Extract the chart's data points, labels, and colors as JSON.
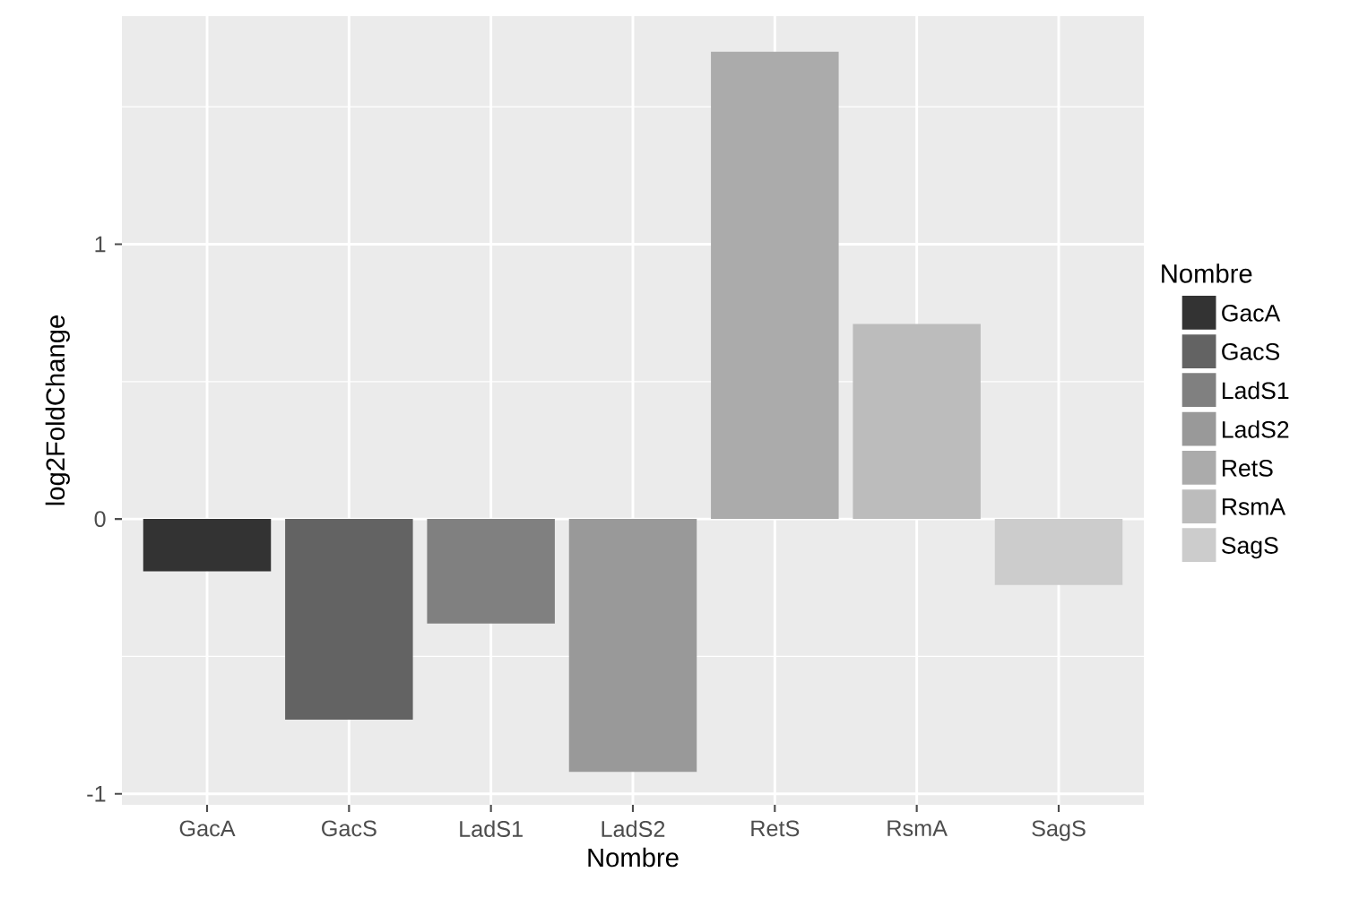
{
  "chart_data": {
    "type": "bar",
    "xlabel": "Nombre",
    "ylabel": "log2FoldChange",
    "legend_title": "Nombre",
    "stacked": true,
    "categories": [
      "GacA",
      "GacS",
      "LadS1",
      "LadS2",
      "RetS",
      "RsmA",
      "SagS"
    ],
    "series": [
      {
        "name": "GacA",
        "color": "#333333",
        "values": [
          -0.19,
          null,
          null,
          null,
          null,
          null,
          null
        ]
      },
      {
        "name": "GacS",
        "color": "#636363",
        "values": [
          null,
          -0.73,
          null,
          null,
          null,
          null,
          null
        ]
      },
      {
        "name": "LadS1",
        "color": "#808080",
        "values": [
          null,
          null,
          -0.38,
          null,
          null,
          null,
          null
        ]
      },
      {
        "name": "LadS2",
        "color": "#999999",
        "values": [
          null,
          null,
          null,
          -0.92,
          null,
          null,
          null
        ]
      },
      {
        "name": "RetS",
        "color": "#ababab",
        "values": [
          null,
          null,
          null,
          null,
          1.7,
          null,
          null
        ]
      },
      {
        "name": "RsmA",
        "color": "#bcbcbc",
        "values": [
          null,
          null,
          null,
          null,
          null,
          0.71,
          null
        ]
      },
      {
        "name": "SagS",
        "color": "#cccccc",
        "values": [
          null,
          null,
          null,
          null,
          null,
          null,
          -0.24
        ]
      }
    ],
    "ylim": [
      -1.04,
      1.83
    ],
    "yticks": [
      -1,
      0,
      1
    ],
    "grid": true,
    "legend": "right"
  }
}
